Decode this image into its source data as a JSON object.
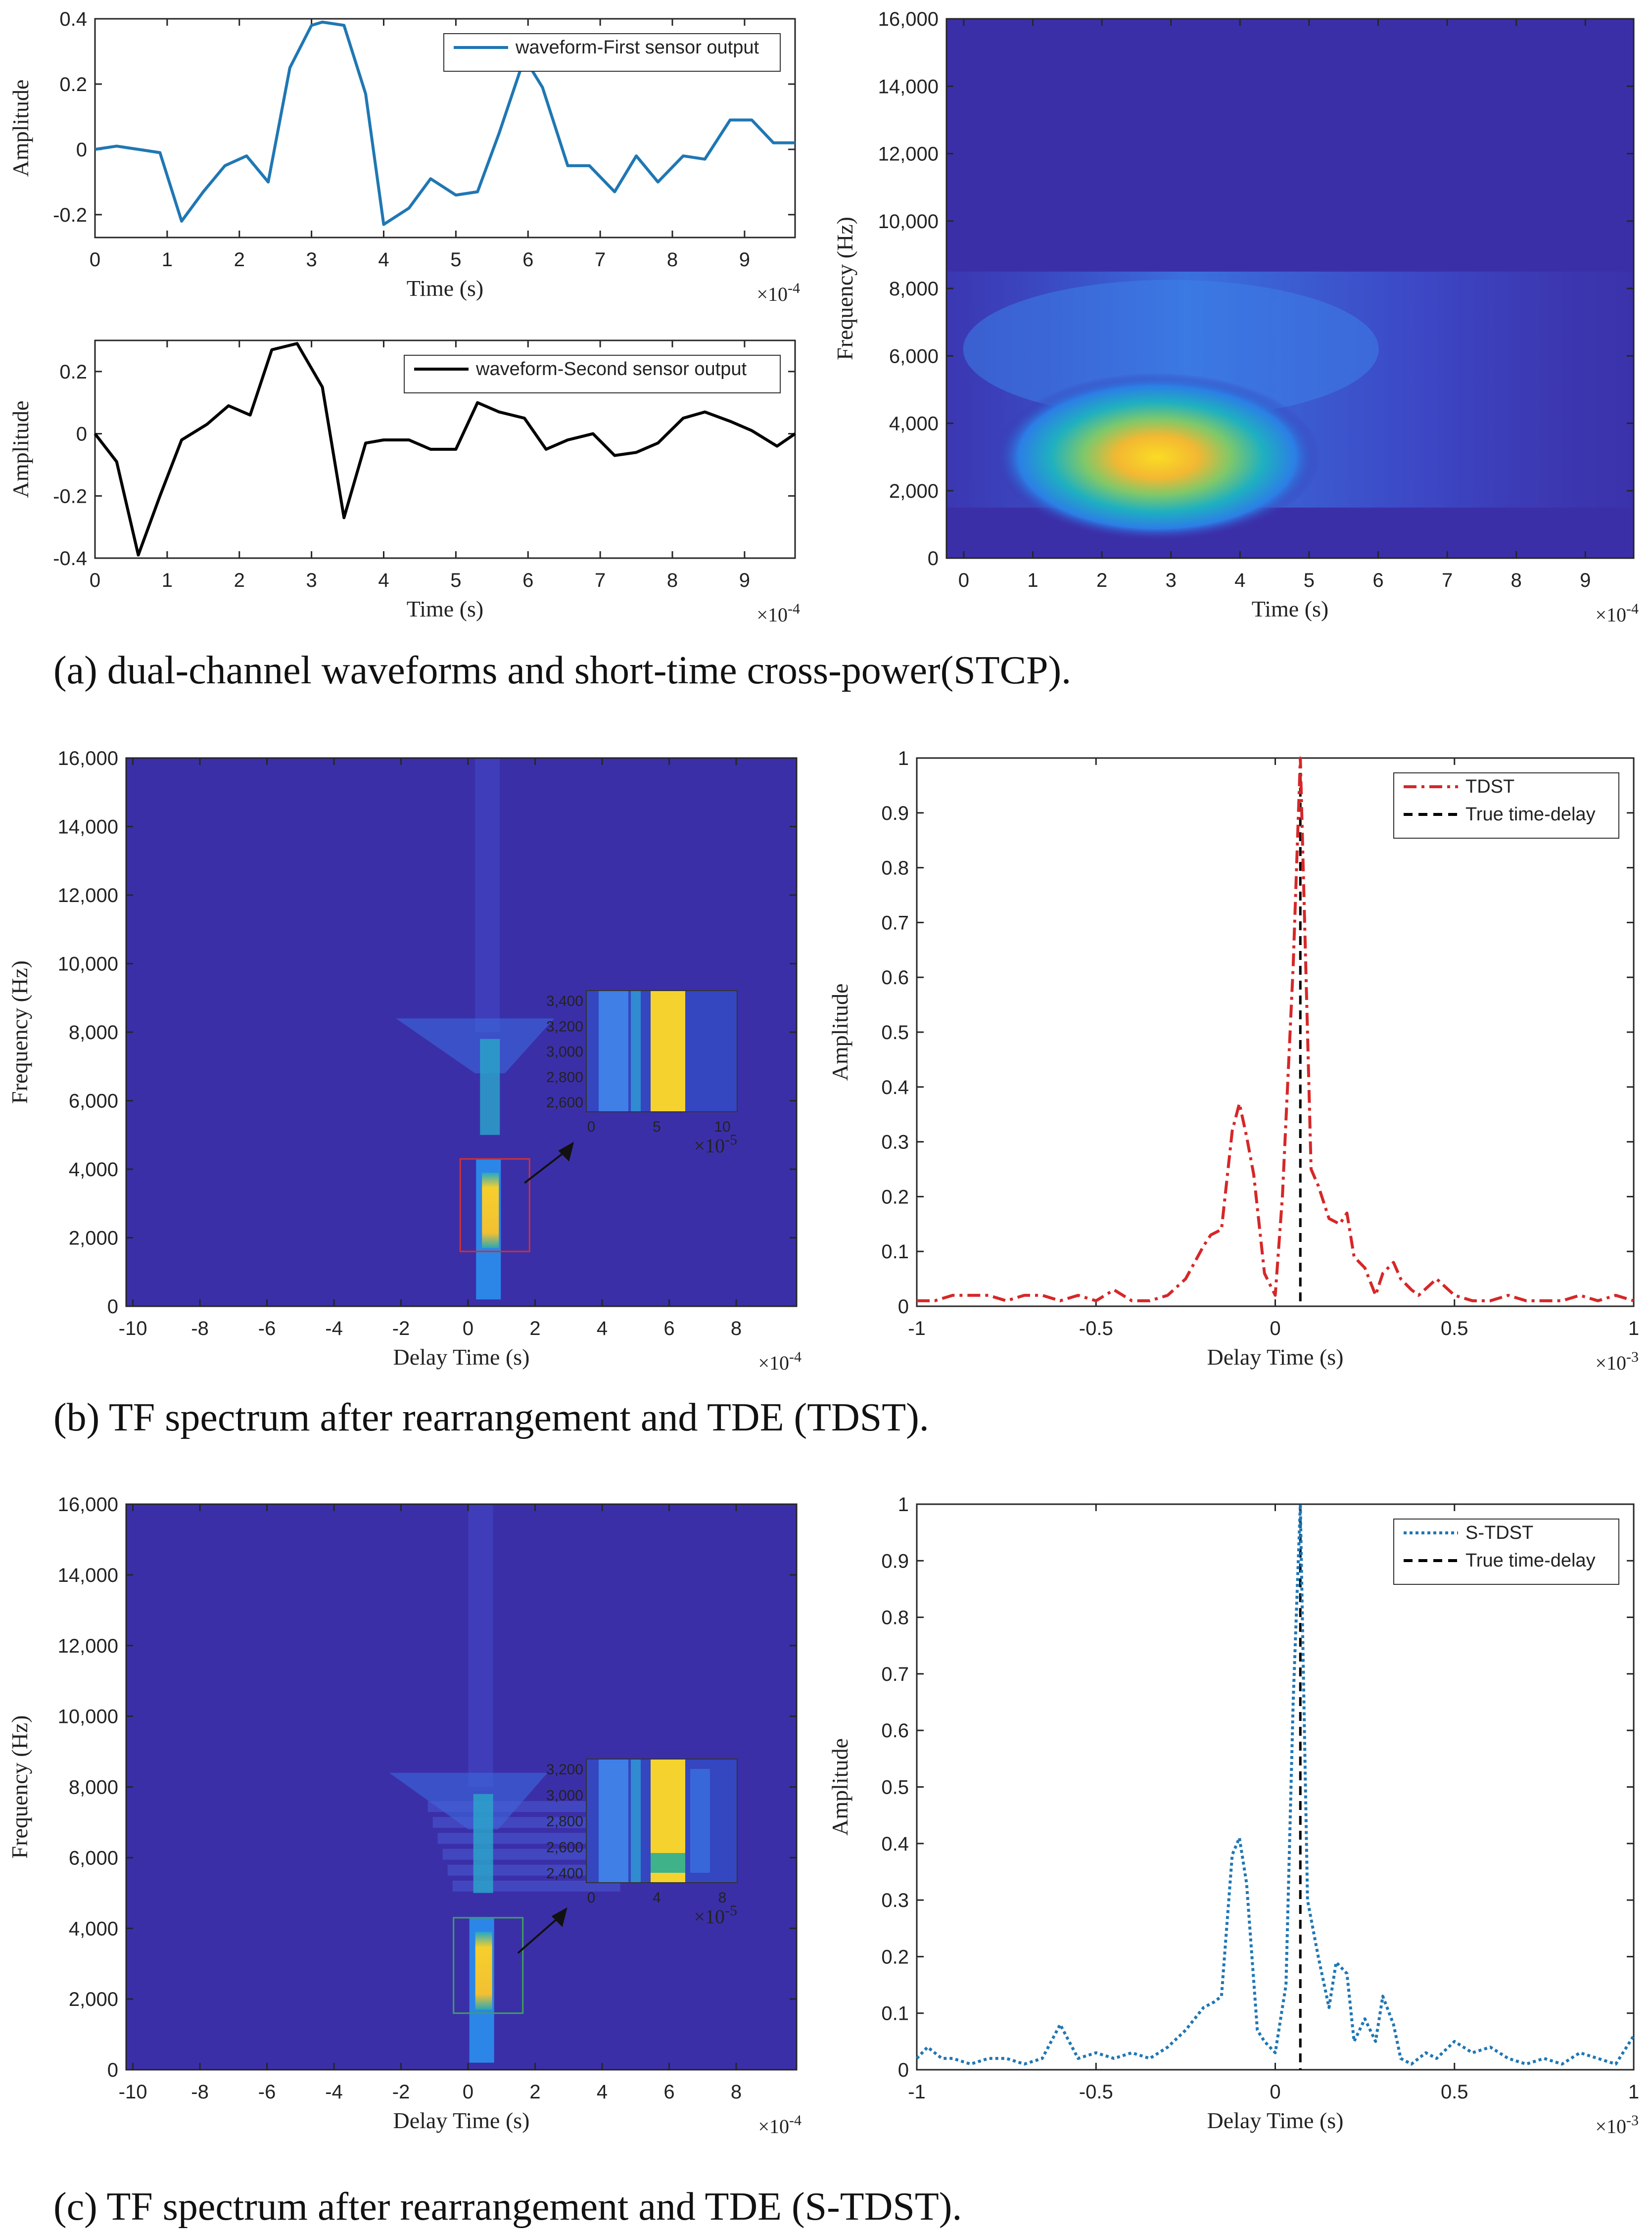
{
  "captions": {
    "a": "(a) dual-channel waveforms and short-time cross-power(STCP).",
    "b": "(b) TF spectrum after rearrangement and TDE (TDST).",
    "c": "(c) TF spectrum after rearrangement and TDE (S-TDST)."
  },
  "colors": {
    "first_sensor": "#1f77b4",
    "second_sensor": "#000000",
    "tdst": "#d62728",
    "stdst": "#1f77b4",
    "true_delay": "#000000",
    "spectrum_bg": "#3b2fa8"
  },
  "chart_data": [
    {
      "id": "a-top",
      "type": "line",
      "xlabel": "Time (s)",
      "ylabel": "Amplitude",
      "x_exponent": "×10",
      "x_exponent_power": "-4",
      "xlim": [
        0,
        9.7
      ],
      "ylim": [
        -0.27,
        0.4
      ],
      "xticks": [
        "0",
        "1",
        "2",
        "3",
        "4",
        "5",
        "6",
        "7",
        "8",
        "9"
      ],
      "yticks": [
        "-0.2",
        "0",
        "0.2",
        "0.4"
      ],
      "legend": [
        "waveform-First sensor output"
      ],
      "series": [
        {
          "name": "waveform-First sensor output",
          "x": [
            0,
            0.3,
            0.6,
            0.9,
            1.2,
            1.5,
            1.8,
            2.1,
            2.4,
            2.7,
            3.0,
            3.15,
            3.45,
            3.75,
            4.0,
            4.35,
            4.65,
            5.0,
            5.3,
            5.6,
            5.95,
            6.2,
            6.55,
            6.85,
            7.2,
            7.5,
            7.8,
            8.15,
            8.45,
            8.8,
            9.1,
            9.4,
            9.7
          ],
          "y": [
            0,
            0.01,
            0,
            -0.01,
            -0.22,
            -0.13,
            -0.05,
            -0.02,
            -0.1,
            0.25,
            0.38,
            0.39,
            0.38,
            0.17,
            -0.23,
            -0.18,
            -0.09,
            -0.14,
            -0.13,
            0.05,
            0.28,
            0.19,
            -0.05,
            -0.05,
            -0.13,
            -0.02,
            -0.1,
            -0.02,
            -0.03,
            0.09,
            0.09,
            0.02,
            0.02
          ]
        }
      ]
    },
    {
      "id": "a-bottom",
      "type": "line",
      "xlabel": "Time (s)",
      "ylabel": "Amplitude",
      "x_exponent": "×10",
      "x_exponent_power": "-4",
      "xlim": [
        0,
        9.7
      ],
      "ylim": [
        -0.4,
        0.3
      ],
      "xticks": [
        "0",
        "1",
        "2",
        "3",
        "4",
        "5",
        "6",
        "7",
        "8",
        "9"
      ],
      "yticks": [
        "-0.4",
        "-0.2",
        "0",
        "0.2"
      ],
      "legend": [
        "waveform-Second sensor output"
      ],
      "series": [
        {
          "name": "waveform-Second sensor output",
          "x": [
            0,
            0.3,
            0.6,
            0.9,
            1.2,
            1.55,
            1.85,
            2.15,
            2.45,
            2.8,
            3.15,
            3.45,
            3.75,
            4.0,
            4.35,
            4.65,
            5.0,
            5.3,
            5.6,
            5.95,
            6.25,
            6.55,
            6.9,
            7.2,
            7.5,
            7.8,
            8.15,
            8.45,
            8.8,
            9.1,
            9.45,
            9.7
          ],
          "y": [
            0,
            -0.09,
            -0.39,
            -0.2,
            -0.02,
            0.03,
            0.09,
            0.06,
            0.27,
            0.29,
            0.15,
            -0.27,
            -0.03,
            -0.02,
            -0.02,
            -0.05,
            -0.05,
            0.1,
            0.07,
            0.05,
            -0.05,
            -0.02,
            0.0,
            -0.07,
            -0.06,
            -0.03,
            0.05,
            0.07,
            0.04,
            0.01,
            -0.04,
            0.0
          ]
        }
      ]
    },
    {
      "id": "a-right",
      "type": "heatmap",
      "xlabel": "Time (s)",
      "ylabel": "Frequency (Hz)",
      "x_exponent": "×10",
      "x_exponent_power": "-4",
      "xlim": [
        -0.25,
        9.7
      ],
      "ylim": [
        0,
        16000
      ],
      "xticks": [
        "0",
        "1",
        "2",
        "3",
        "4",
        "5",
        "6",
        "7",
        "8",
        "9"
      ],
      "yticks": [
        "0",
        "2,000",
        "4,000",
        "6,000",
        "8,000",
        "10,000",
        "12,000",
        "14,000",
        "16,000"
      ],
      "peak": {
        "x": 2.8,
        "y": 3000
      },
      "band": {
        "y_center": 5000
      }
    },
    {
      "id": "b-left",
      "type": "heatmap",
      "xlabel": "Delay Time (s)",
      "ylabel": "Frequency (Hz)",
      "x_exponent": "×10",
      "x_exponent_power": "-4",
      "xlim": [
        -10.2,
        9.8
      ],
      "ylim": [
        0,
        16000
      ],
      "xticks": [
        "-10",
        "-8",
        "-6",
        "-4",
        "-2",
        "0",
        "2",
        "4",
        "6",
        "8"
      ],
      "yticks": [
        "0",
        "2,000",
        "4,000",
        "6,000",
        "8,000",
        "10,000",
        "12,000",
        "14,000",
        "16,000"
      ],
      "peak": {
        "x": 0.8,
        "y": 3000
      },
      "inset": {
        "xticks": [
          "0",
          "5",
          "10"
        ],
        "yticks": [
          "2,600",
          "2,800",
          "3,000",
          "3,200",
          "3,400"
        ],
        "x_exponent": "×10",
        "x_exponent_power": "-5"
      }
    },
    {
      "id": "b-right",
      "type": "line",
      "xlabel": "Delay Time (s)",
      "ylabel": "Amplitude",
      "x_exponent": "×10",
      "x_exponent_power": "-3",
      "xlim": [
        -1,
        1
      ],
      "ylim": [
        0,
        1
      ],
      "xticks": [
        "-1",
        "-0.5",
        "0",
        "0.5",
        "1"
      ],
      "yticks": [
        "0",
        "0.1",
        "0.2",
        "0.3",
        "0.4",
        "0.5",
        "0.6",
        "0.7",
        "0.8",
        "0.9",
        "1"
      ],
      "legend": [
        "TDST",
        "True time-delay"
      ],
      "true_delay": 0.07,
      "series": [
        {
          "name": "TDST",
          "x": [
            -1,
            -0.95,
            -0.9,
            -0.85,
            -0.8,
            -0.75,
            -0.7,
            -0.65,
            -0.6,
            -0.55,
            -0.5,
            -0.45,
            -0.4,
            -0.35,
            -0.3,
            -0.25,
            -0.2,
            -0.18,
            -0.15,
            -0.12,
            -0.1,
            -0.08,
            -0.06,
            -0.03,
            0,
            0.02,
            0.05,
            0.07,
            0.1,
            0.12,
            0.15,
            0.18,
            0.2,
            0.22,
            0.25,
            0.28,
            0.3,
            0.33,
            0.35,
            0.38,
            0.4,
            0.45,
            0.5,
            0.55,
            0.6,
            0.65,
            0.7,
            0.75,
            0.8,
            0.85,
            0.9,
            0.95,
            1
          ],
          "y": [
            0.01,
            0.01,
            0.02,
            0.02,
            0.02,
            0.01,
            0.02,
            0.02,
            0.01,
            0.02,
            0.01,
            0.03,
            0.01,
            0.01,
            0.02,
            0.05,
            0.11,
            0.13,
            0.14,
            0.32,
            0.37,
            0.31,
            0.24,
            0.06,
            0.02,
            0.2,
            0.62,
            1,
            0.25,
            0.22,
            0.16,
            0.15,
            0.17,
            0.09,
            0.07,
            0.02,
            0.06,
            0.08,
            0.05,
            0.03,
            0.02,
            0.05,
            0.02,
            0.01,
            0.01,
            0.02,
            0.01,
            0.01,
            0.01,
            0.02,
            0.01,
            0.02,
            0.01
          ]
        }
      ]
    },
    {
      "id": "c-left",
      "type": "heatmap",
      "xlabel": "Delay Time (s)",
      "ylabel": "Frequency (Hz)",
      "x_exponent": "×10",
      "x_exponent_power": "-4",
      "xlim": [
        -10.2,
        9.8
      ],
      "ylim": [
        0,
        16000
      ],
      "xticks": [
        "-10",
        "-8",
        "-6",
        "-4",
        "-2",
        "0",
        "2",
        "4",
        "6",
        "8"
      ],
      "yticks": [
        "0",
        "2,000",
        "4,000",
        "6,000",
        "8,000",
        "10,000",
        "12,000",
        "14,000",
        "16,000"
      ],
      "peak": {
        "x": 0.6,
        "y": 3000
      },
      "inset": {
        "xticks": [
          "0",
          "4",
          "8"
        ],
        "yticks": [
          "2,400",
          "2,600",
          "2,800",
          "3,000",
          "3,200"
        ],
        "x_exponent": "×10",
        "x_exponent_power": "-5"
      }
    },
    {
      "id": "c-right",
      "type": "line",
      "xlabel": "Delay Time (s)",
      "ylabel": "Amplitude",
      "x_exponent": "×10",
      "x_exponent_power": "-3",
      "xlim": [
        -1,
        1
      ],
      "ylim": [
        0,
        1
      ],
      "xticks": [
        "-1",
        "-0.5",
        "0",
        "0.5",
        "1"
      ],
      "yticks": [
        "0",
        "0.1",
        "0.2",
        "0.3",
        "0.4",
        "0.5",
        "0.6",
        "0.7",
        "0.8",
        "0.9",
        "1"
      ],
      "legend": [
        "S-TDST",
        "True time-delay"
      ],
      "true_delay": 0.07,
      "series": [
        {
          "name": "S-TDST",
          "x": [
            -1,
            -0.97,
            -0.93,
            -0.9,
            -0.85,
            -0.8,
            -0.75,
            -0.7,
            -0.65,
            -0.6,
            -0.55,
            -0.5,
            -0.45,
            -0.4,
            -0.35,
            -0.3,
            -0.25,
            -0.2,
            -0.17,
            -0.15,
            -0.12,
            -0.1,
            -0.08,
            -0.05,
            -0.03,
            0,
            0.03,
            0.05,
            0.07,
            0.09,
            0.12,
            0.15,
            0.17,
            0.2,
            0.22,
            0.25,
            0.28,
            0.3,
            0.33,
            0.35,
            0.38,
            0.42,
            0.45,
            0.5,
            0.55,
            0.6,
            0.65,
            0.7,
            0.75,
            0.8,
            0.85,
            0.9,
            0.95,
            1
          ],
          "y": [
            0.02,
            0.04,
            0.02,
            0.02,
            0.01,
            0.02,
            0.02,
            0.01,
            0.02,
            0.08,
            0.02,
            0.03,
            0.02,
            0.03,
            0.02,
            0.04,
            0.07,
            0.11,
            0.12,
            0.13,
            0.38,
            0.41,
            0.33,
            0.07,
            0.05,
            0.03,
            0.15,
            0.65,
            1,
            0.3,
            0.2,
            0.11,
            0.19,
            0.17,
            0.05,
            0.09,
            0.05,
            0.13,
            0.08,
            0.02,
            0.01,
            0.03,
            0.02,
            0.05,
            0.03,
            0.04,
            0.02,
            0.01,
            0.02,
            0.01,
            0.03,
            0.02,
            0.01,
            0.06
          ]
        }
      ]
    }
  ]
}
